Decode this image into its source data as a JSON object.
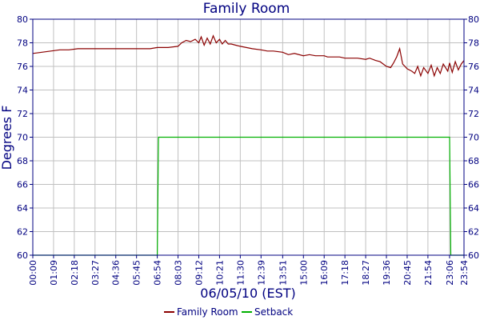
{
  "chart_data": {
    "type": "line",
    "title": "Family Room",
    "xlabel": "06/05/10 (EST)",
    "ylabel": "Degrees F",
    "ylim": [
      60,
      80
    ],
    "y_ticks": [
      60,
      62,
      64,
      66,
      68,
      70,
      72,
      74,
      76,
      78,
      80
    ],
    "x_ticks": [
      "00:00",
      "01:09",
      "02:18",
      "03:27",
      "04:36",
      "05:45",
      "06:54",
      "08:03",
      "09:12",
      "10:21",
      "11:30",
      "12:39",
      "13:51",
      "15:00",
      "16:09",
      "17:18",
      "18:27",
      "19:36",
      "20:45",
      "21:54",
      "23:06",
      "23:54"
    ],
    "grid": true,
    "legend_position": "bottom",
    "colors": {
      "plot_bg": "#ffffff",
      "grid": "#c0c0c0",
      "axis": "#000080",
      "family_room": "#8b0000",
      "setback": "#00b000"
    },
    "series": [
      {
        "name": "Family Room",
        "x": [
          "00:00",
          "00:30",
          "01:00",
          "01:30",
          "02:00",
          "02:30",
          "03:00",
          "03:30",
          "04:00",
          "04:30",
          "05:00",
          "05:30",
          "06:00",
          "06:30",
          "06:54",
          "07:30",
          "08:03",
          "08:15",
          "08:30",
          "08:45",
          "09:00",
          "09:12",
          "09:20",
          "09:30",
          "09:40",
          "09:50",
          "10:00",
          "10:10",
          "10:21",
          "10:30",
          "10:40",
          "10:50",
          "11:00",
          "11:15",
          "11:30",
          "11:50",
          "12:10",
          "12:39",
          "13:00",
          "13:20",
          "13:51",
          "14:10",
          "14:30",
          "15:00",
          "15:20",
          "15:40",
          "16:00",
          "16:09",
          "16:20",
          "16:40",
          "17:00",
          "17:18",
          "17:40",
          "18:00",
          "18:27",
          "18:40",
          "19:00",
          "19:15",
          "19:36",
          "19:50",
          "20:00",
          "20:10",
          "20:20",
          "20:30",
          "20:45",
          "21:00",
          "21:10",
          "21:20",
          "21:30",
          "21:40",
          "21:54",
          "22:05",
          "22:15",
          "22:25",
          "22:35",
          "22:45",
          "23:00",
          "23:06",
          "23:15",
          "23:25",
          "23:35",
          "23:45",
          "23:54"
        ],
        "values": [
          77.1,
          77.2,
          77.3,
          77.4,
          77.4,
          77.5,
          77.5,
          77.5,
          77.5,
          77.5,
          77.5,
          77.5,
          77.5,
          77.5,
          77.6,
          77.6,
          77.7,
          78.0,
          78.2,
          78.1,
          78.3,
          78.0,
          78.5,
          77.8,
          78.4,
          77.9,
          78.6,
          78.0,
          78.3,
          77.9,
          78.2,
          77.9,
          77.9,
          77.8,
          77.7,
          77.6,
          77.5,
          77.4,
          77.3,
          77.3,
          77.2,
          77.0,
          77.1,
          76.9,
          77.0,
          76.9,
          76.9,
          76.9,
          76.8,
          76.8,
          76.8,
          76.7,
          76.7,
          76.7,
          76.6,
          76.7,
          76.5,
          76.4,
          76.0,
          75.9,
          76.3,
          76.8,
          77.5,
          76.2,
          75.8,
          75.6,
          75.4,
          76.0,
          75.2,
          75.9,
          75.4,
          76.1,
          75.2,
          75.9,
          75.4,
          76.2,
          75.6,
          76.3,
          75.5,
          76.4,
          75.7,
          76.2,
          76.5
        ]
      },
      {
        "name": "Setback",
        "x": [
          "00:00",
          "06:54",
          "06:58",
          "23:06",
          "23:10",
          "23:54"
        ],
        "values": [
          60,
          60,
          70,
          70,
          60,
          60
        ]
      }
    ]
  }
}
